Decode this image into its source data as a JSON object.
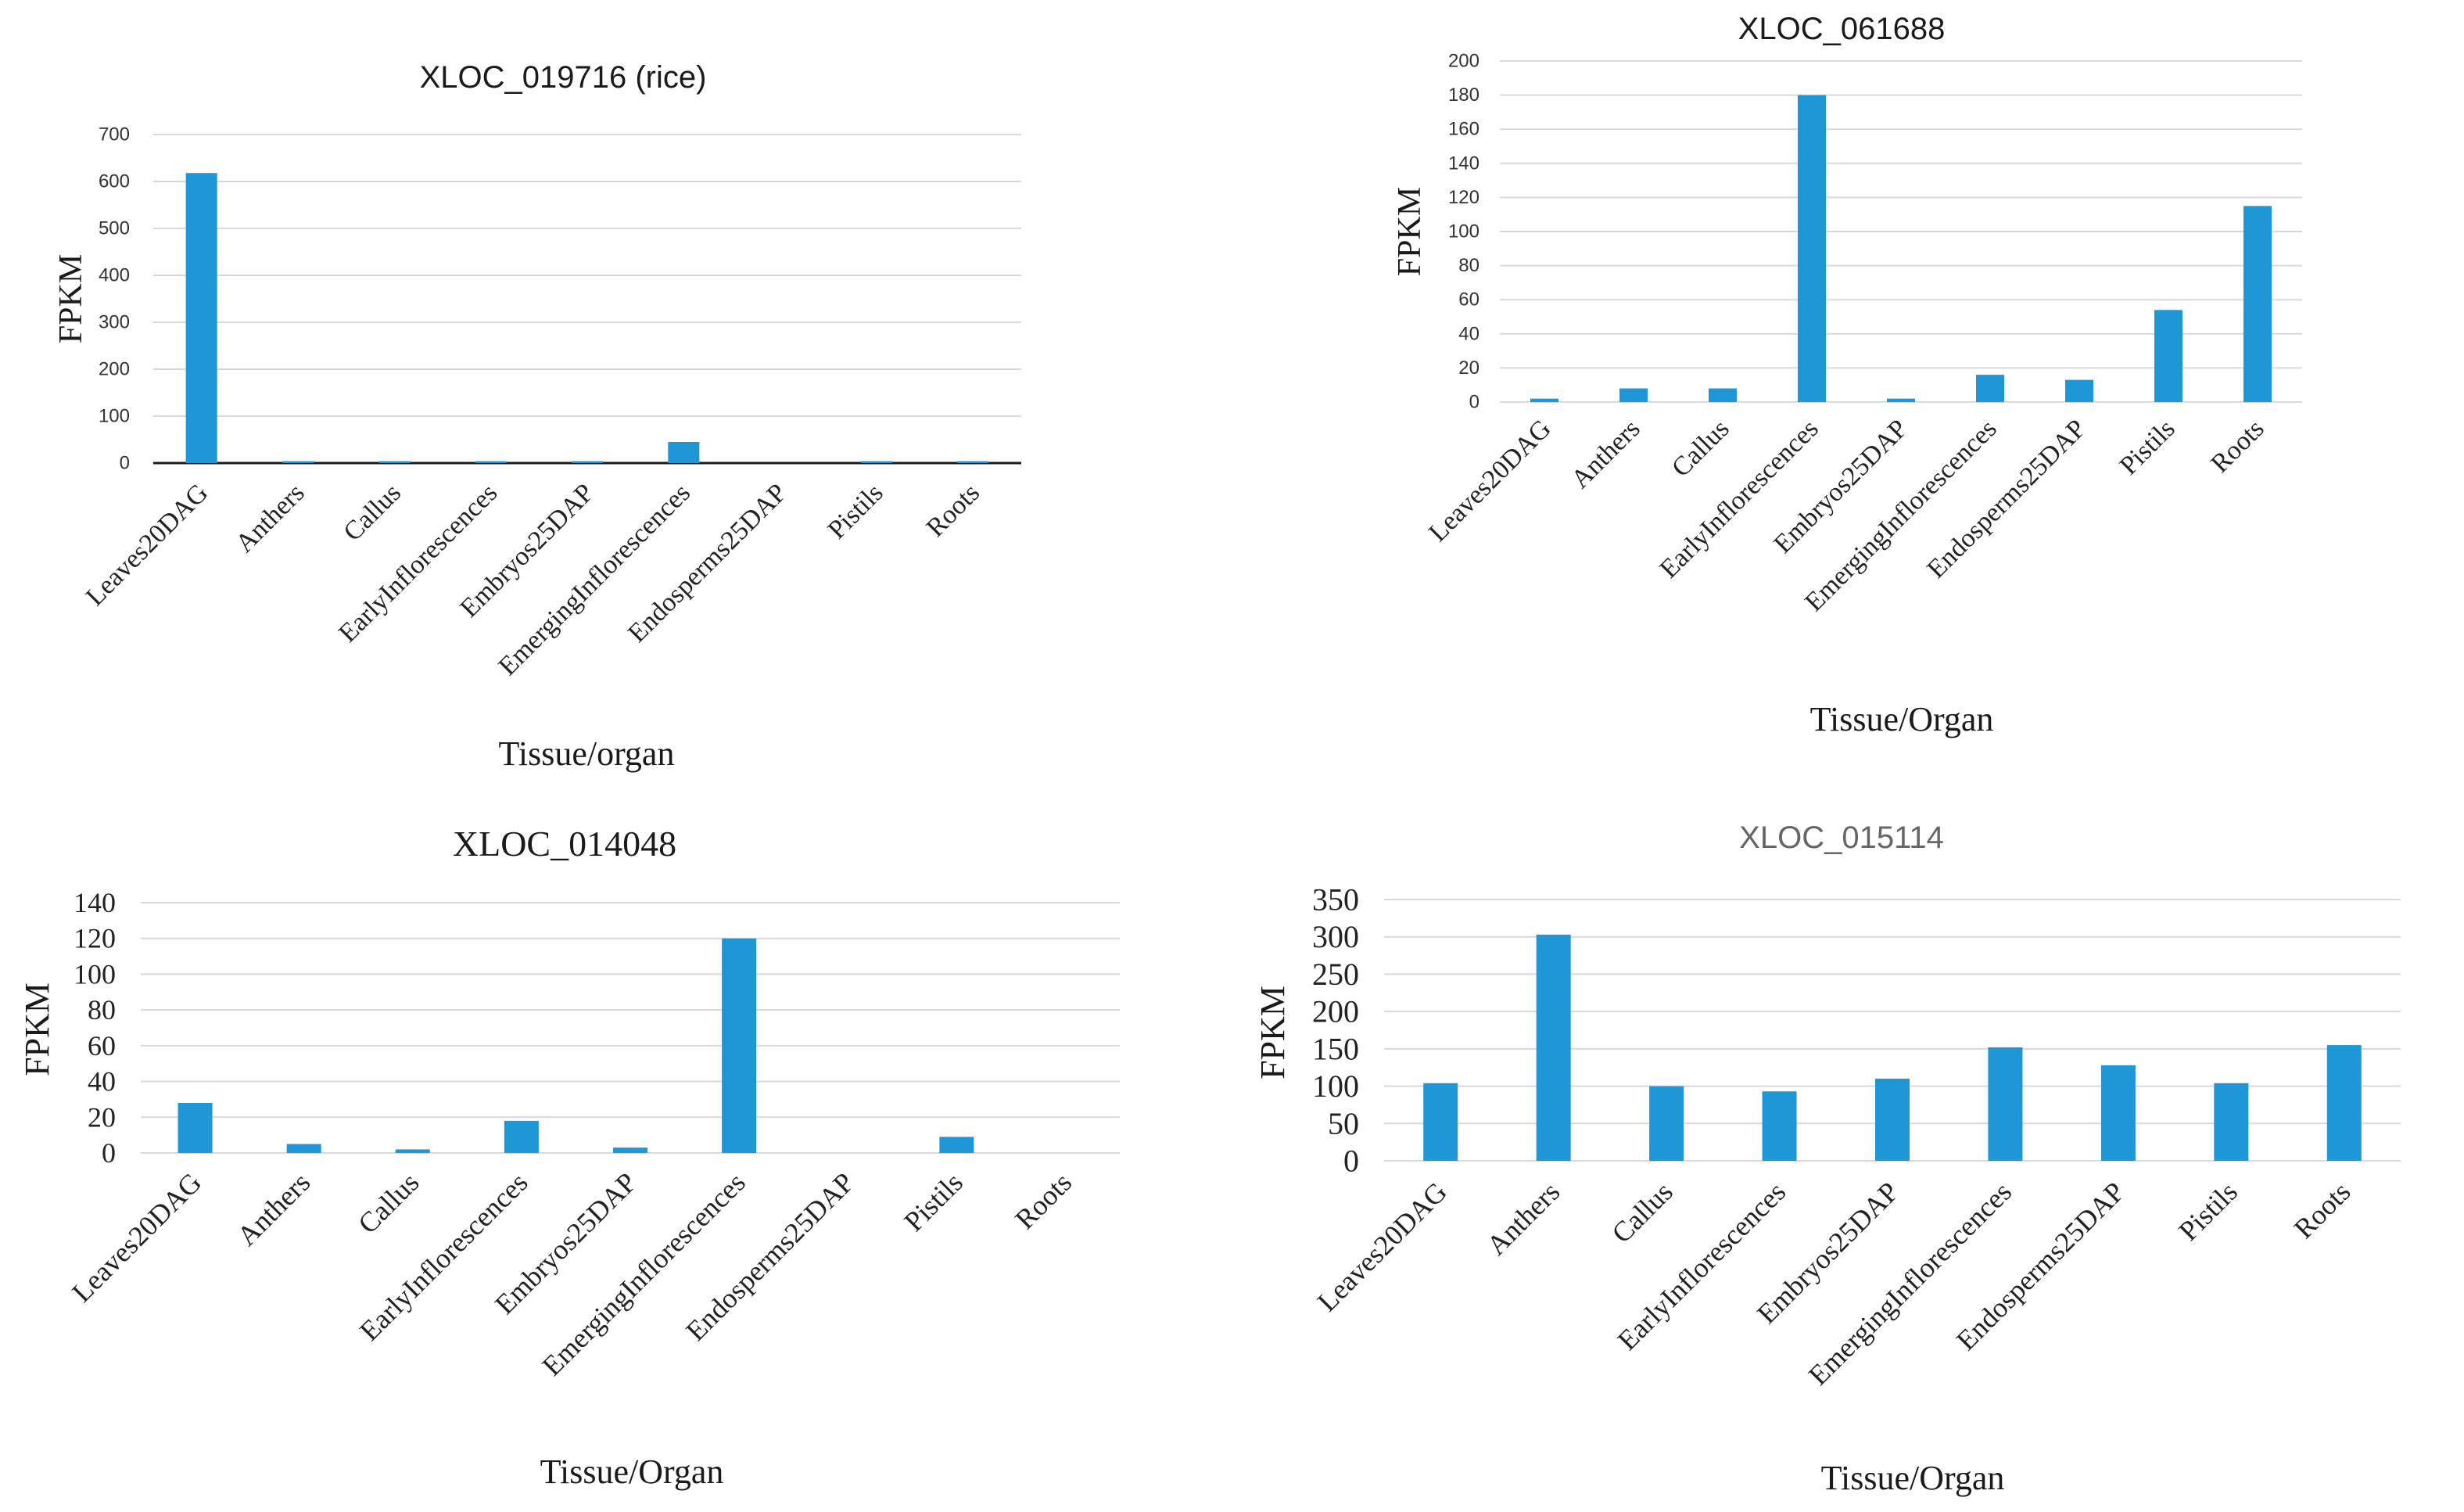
{
  "chart_data": [
    {
      "type": "bar",
      "title": "XLOC_019716  (rice)",
      "xlabel": "Tissue/organ",
      "ylabel": "FPKM",
      "ylim": [
        0,
        700
      ],
      "yticks": [
        0,
        100,
        200,
        300,
        400,
        500,
        600,
        700
      ],
      "categories": [
        "Leaves20DAG",
        "Anthers",
        "Callus",
        "EarlyInflorescences",
        "Embryos25DAP",
        "EmergingInflorescences",
        "Endosperms25DAP",
        "Pistils",
        "Roots"
      ],
      "values": [
        618,
        4,
        4,
        4,
        4,
        45,
        0,
        4,
        4
      ],
      "color": "#1f96d6"
    },
    {
      "type": "bar",
      "title": "XLOC_061688",
      "xlabel": "Tissue/Organ",
      "ylabel": "FPKM",
      "ylim": [
        0,
        200
      ],
      "yticks": [
        0,
        20,
        40,
        60,
        80,
        100,
        120,
        140,
        160,
        180,
        200
      ],
      "categories": [
        "Leaves20DAG",
        "Anthers",
        "Callus",
        "EarlyInflorescences",
        "Embryos25DAP",
        "EmergingInflorescences",
        "Endosperms25DAP",
        "Pistils",
        "Roots"
      ],
      "values": [
        2,
        8,
        8,
        180,
        2,
        16,
        13,
        54,
        115
      ],
      "color": "#1f96d6"
    },
    {
      "type": "bar",
      "title": "XLOC_014048",
      "xlabel": "Tissue/Organ",
      "ylabel": "FPKM",
      "ylim": [
        0,
        140
      ],
      "yticks": [
        0,
        20,
        40,
        60,
        80,
        100,
        120,
        140
      ],
      "categories": [
        "Leaves20DAG",
        "Anthers",
        "Callus",
        "EarlyInflorescences",
        "Embryos25DAP",
        "EmergingInflorescences",
        "Endosperms25DAP",
        "Pistils",
        "Roots"
      ],
      "values": [
        28,
        5,
        2,
        18,
        3,
        120,
        0,
        9,
        0
      ],
      "color": "#1f96d6"
    },
    {
      "type": "bar",
      "title": "XLOC_015114",
      "xlabel": "Tissue/Organ",
      "ylabel": "FPKM",
      "ylim": [
        0,
        350
      ],
      "yticks": [
        0,
        50,
        100,
        150,
        200,
        250,
        300,
        350
      ],
      "categories": [
        "Leaves20DAG",
        "Anthers",
        "Callus",
        "EarlyInflorescences",
        "Embryos25DAP",
        "EmergingInflorescences",
        "Endosperms25DAP",
        "Pistils",
        "Roots"
      ],
      "values": [
        104,
        303,
        100,
        93,
        110,
        152,
        128,
        104,
        155
      ],
      "color": "#1f96d6"
    }
  ]
}
